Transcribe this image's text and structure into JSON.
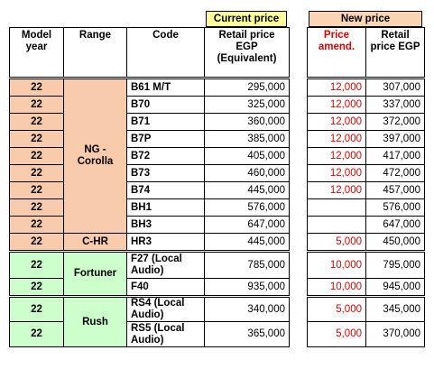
{
  "header": {
    "current_price": "Current price",
    "new_price": "New price",
    "columns": [
      "Model year",
      "Range",
      "Code",
      "Retail price EGP (Equivalent)",
      "Price amend.",
      "Retail price EGP"
    ]
  },
  "ranges": [
    "NG - Corolla",
    "C-HR",
    "Fortuner",
    "Rush"
  ],
  "table": {
    "rows": [
      [
        "22",
        "B61 M/T",
        "295,000",
        "12,000",
        "307,000"
      ],
      [
        "22",
        "B70",
        "325,000",
        "12,000",
        "337,000"
      ],
      [
        "22",
        "B71",
        "360,000",
        "12,000",
        "372,000"
      ],
      [
        "22",
        "B7P",
        "385,000",
        "12,000",
        "397,000"
      ],
      [
        "22",
        "B72",
        "405,000",
        "12,000",
        "417,000"
      ],
      [
        "22",
        "B73",
        "460,000",
        "12,000",
        "472,000"
      ],
      [
        "22",
        "B74",
        "445,000",
        "12,000",
        "457,000"
      ],
      [
        "22",
        "BH1",
        "576,000",
        null,
        "576,000"
      ],
      [
        "22",
        "BH3",
        "647,000",
        null,
        "647,000"
      ],
      [
        "22",
        "HR3",
        "445,000",
        "5,000",
        "450,000"
      ],
      [
        "22",
        "F27 (Local Audio)",
        "785,000",
        "10,000",
        "795,000"
      ],
      [
        "22",
        "F40",
        "935,000",
        "10,000",
        "945,000"
      ],
      [
        "22",
        "RS4 (Local Audio)",
        "340,000",
        "5,000",
        "345,000"
      ],
      [
        "22",
        "RS5 (Local Audio)",
        "365,000",
        "5,000",
        "370,000"
      ]
    ]
  }
}
